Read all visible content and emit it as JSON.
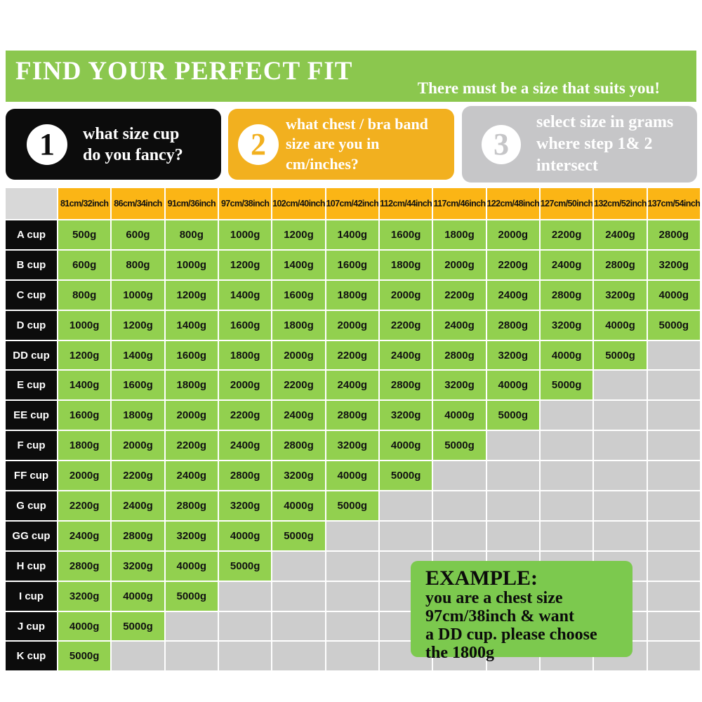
{
  "banner": {
    "title": "FIND YOUR PERFECT FIT",
    "subtitle": "There must be a size that suits you!"
  },
  "steps": [
    {
      "number": "1",
      "line1": "what size cup",
      "line2": "do you fancy?"
    },
    {
      "number": "2",
      "line1": "what chest / bra band",
      "line2": "size are you in cm/inches?"
    },
    {
      "number": "3",
      "line1": "select size in grams",
      "line2": "where step 1& 2",
      "line3": "intersect"
    }
  ],
  "example": {
    "heading": "EXAMPLE:",
    "line1": "you are a chest size",
    "line2": "97cm/38inch & want",
    "line3": "a DD cup. please choose",
    "line4": "the 1800g"
  },
  "colors": {
    "banner_green": "#8BC74E",
    "cell_green": "#92D04F",
    "example_green": "#7CC94E",
    "step_black": "#0C0C0C",
    "step_orange": "#F2B01F",
    "header_orange": "#FBB515",
    "step_gray": "#C6C6C8",
    "empty_gray": "#CDCDCD",
    "corner_gray": "#D8D8D8"
  },
  "chart_data": {
    "type": "table",
    "title": "FIND YOUR PERFECT FIT",
    "columns": [
      "81cm/32inch",
      "86cm/34inch",
      "91cm/36inch",
      "97cm/38inch",
      "102cm/40inch",
      "107cm/42inch",
      "112cm/44inch",
      "117cm/46inch",
      "122cm/48inch",
      "127cm/50inch",
      "132cm/52inch",
      "137cm/54inch"
    ],
    "rows": [
      {
        "cup": "A cup",
        "values": [
          "500g",
          "600g",
          "800g",
          "1000g",
          "1200g",
          "1400g",
          "1600g",
          "1800g",
          "2000g",
          "2200g",
          "2400g",
          "2800g"
        ]
      },
      {
        "cup": "B cup",
        "values": [
          "600g",
          "800g",
          "1000g",
          "1200g",
          "1400g",
          "1600g",
          "1800g",
          "2000g",
          "2200g",
          "2400g",
          "2800g",
          "3200g"
        ]
      },
      {
        "cup": "C cup",
        "values": [
          "800g",
          "1000g",
          "1200g",
          "1400g",
          "1600g",
          "1800g",
          "2000g",
          "2200g",
          "2400g",
          "2800g",
          "3200g",
          "4000g"
        ]
      },
      {
        "cup": "D cup",
        "values": [
          "1000g",
          "1200g",
          "1400g",
          "1600g",
          "1800g",
          "2000g",
          "2200g",
          "2400g",
          "2800g",
          "3200g",
          "4000g",
          "5000g"
        ]
      },
      {
        "cup": "DD cup",
        "values": [
          "1200g",
          "1400g",
          "1600g",
          "1800g",
          "2000g",
          "2200g",
          "2400g",
          "2800g",
          "3200g",
          "4000g",
          "5000g"
        ]
      },
      {
        "cup": "E cup",
        "values": [
          "1400g",
          "1600g",
          "1800g",
          "2000g",
          "2200g",
          "2400g",
          "2800g",
          "3200g",
          "4000g",
          "5000g"
        ]
      },
      {
        "cup": "EE cup",
        "values": [
          "1600g",
          "1800g",
          "2000g",
          "2200g",
          "2400g",
          "2800g",
          "3200g",
          "4000g",
          "5000g"
        ]
      },
      {
        "cup": "F cup",
        "values": [
          "1800g",
          "2000g",
          "2200g",
          "2400g",
          "2800g",
          "3200g",
          "4000g",
          "5000g"
        ]
      },
      {
        "cup": "FF cup",
        "values": [
          "2000g",
          "2200g",
          "2400g",
          "2800g",
          "3200g",
          "4000g",
          "5000g"
        ]
      },
      {
        "cup": "G cup",
        "values": [
          "2200g",
          "2400g",
          "2800g",
          "3200g",
          "4000g",
          "5000g"
        ]
      },
      {
        "cup": "GG cup",
        "values": [
          "2400g",
          "2800g",
          "3200g",
          "4000g",
          "5000g"
        ]
      },
      {
        "cup": "H cup",
        "values": [
          "2800g",
          "3200g",
          "4000g",
          "5000g"
        ]
      },
      {
        "cup": "I cup",
        "values": [
          "3200g",
          "4000g",
          "5000g"
        ]
      },
      {
        "cup": "J cup",
        "values": [
          "4000g",
          "5000g"
        ]
      },
      {
        "cup": "K cup",
        "values": [
          "5000g"
        ]
      }
    ]
  }
}
